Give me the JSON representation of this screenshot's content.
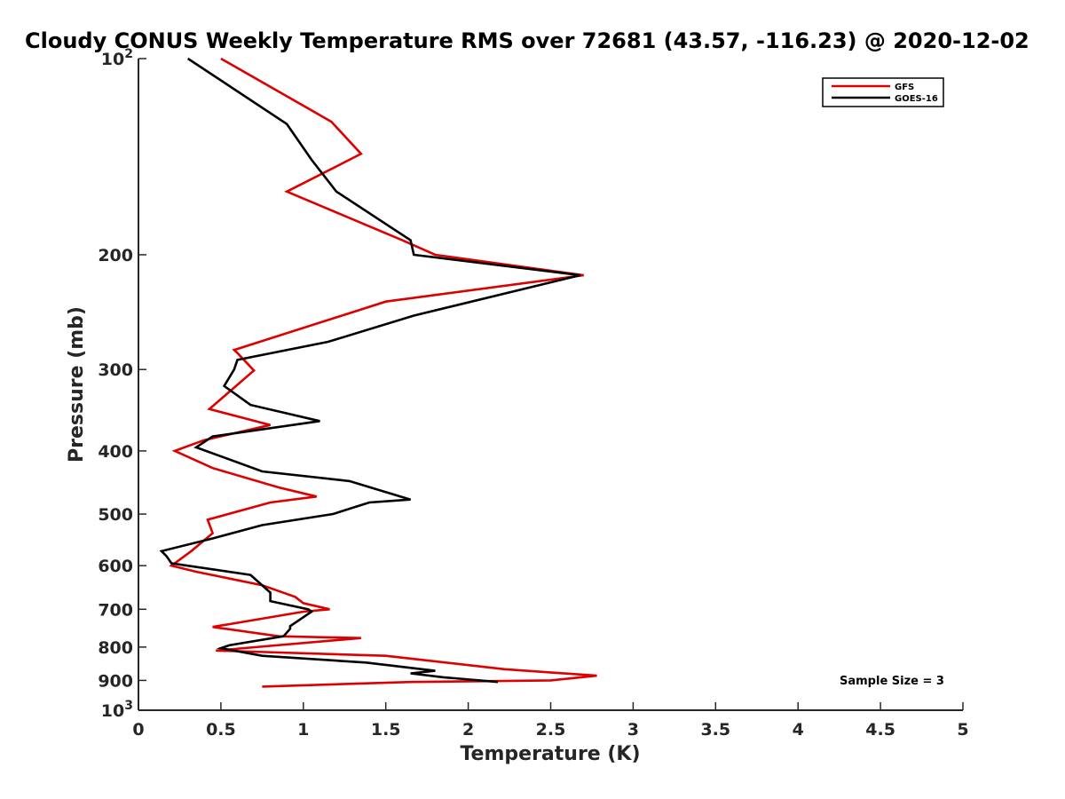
{
  "chart_data": {
    "type": "line",
    "title": "Cloudy CONUS Weekly Temperature RMS over 72681 (43.57, -116.23) @ 2020-12-02",
    "xlabel": "Temperature (K)",
    "ylabel": "Pressure (mb)",
    "xlim": [
      0,
      5
    ],
    "ylim": [
      100,
      1000
    ],
    "y_scale": "log",
    "y_reversed": true,
    "x_ticks": [
      "0",
      "0.5",
      "1",
      "1.5",
      "2",
      "2.5",
      "3",
      "3.5",
      "4",
      "4.5",
      "5"
    ],
    "y_ticks": [
      {
        "value": 100,
        "base": "10",
        "exp": "2"
      },
      {
        "value": 200,
        "label": "200"
      },
      {
        "value": 300,
        "label": "300"
      },
      {
        "value": 400,
        "label": "400"
      },
      {
        "value": 500,
        "label": "500"
      },
      {
        "value": 600,
        "label": "600"
      },
      {
        "value": 700,
        "label": "700"
      },
      {
        "value": 800,
        "label": "800"
      },
      {
        "value": 900,
        "label": "900"
      },
      {
        "value": 1000,
        "base": "10",
        "exp": "3"
      }
    ],
    "grid": false,
    "legend_position": "top-right",
    "annotation": "Sample Size = 3",
    "series": [
      {
        "name": "GFS",
        "color": "#dd0000",
        "points": [
          [
            0.5,
            100
          ],
          [
            1.17,
            125
          ],
          [
            1.35,
            140
          ],
          [
            0.9,
            160
          ],
          [
            1.6,
            190
          ],
          [
            1.8,
            200
          ],
          [
            2.7,
            215
          ],
          [
            1.5,
            236
          ],
          [
            0.58,
            280
          ],
          [
            0.6,
            283
          ],
          [
            0.7,
            301
          ],
          [
            0.43,
            345
          ],
          [
            0.8,
            365
          ],
          [
            0.4,
            385
          ],
          [
            0.22,
            400
          ],
          [
            0.45,
            425
          ],
          [
            0.85,
            455
          ],
          [
            1.08,
            470
          ],
          [
            0.8,
            480
          ],
          [
            0.42,
            510
          ],
          [
            0.45,
            535
          ],
          [
            0.32,
            570
          ],
          [
            0.2,
            600
          ],
          [
            0.35,
            613
          ],
          [
            0.75,
            643
          ],
          [
            0.95,
            670
          ],
          [
            1.0,
            685
          ],
          [
            1.16,
            700
          ],
          [
            1.0,
            706
          ],
          [
            0.45,
            745
          ],
          [
            0.85,
            770
          ],
          [
            1.35,
            775
          ],
          [
            0.47,
            810
          ],
          [
            1.5,
            825
          ],
          [
            2.22,
            865
          ],
          [
            2.78,
            885
          ],
          [
            2.5,
            900
          ],
          [
            1.65,
            905
          ],
          [
            0.75,
            920
          ]
        ]
      },
      {
        "name": "GOES-16",
        "color": "#000000",
        "points": [
          [
            0.3,
            100
          ],
          [
            0.9,
            126
          ],
          [
            1.05,
            143
          ],
          [
            1.2,
            160
          ],
          [
            1.65,
            190
          ],
          [
            1.67,
            200
          ],
          [
            2.68,
            215
          ],
          [
            1.67,
            248
          ],
          [
            1.15,
            272
          ],
          [
            0.6,
            290
          ],
          [
            0.58,
            300
          ],
          [
            0.52,
            318
          ],
          [
            0.68,
            340
          ],
          [
            1.1,
            360
          ],
          [
            0.45,
            380
          ],
          [
            0.35,
            395
          ],
          [
            0.75,
            430
          ],
          [
            1.28,
            445
          ],
          [
            1.65,
            475
          ],
          [
            1.4,
            480
          ],
          [
            1.18,
            500
          ],
          [
            0.75,
            520
          ],
          [
            0.45,
            545
          ],
          [
            0.14,
            570
          ],
          [
            0.17,
            580
          ],
          [
            0.2,
            595
          ],
          [
            0.68,
            620
          ],
          [
            0.8,
            660
          ],
          [
            0.8,
            680
          ],
          [
            1.03,
            700
          ],
          [
            1.05,
            706
          ],
          [
            0.92,
            743
          ],
          [
            0.92,
            750
          ],
          [
            0.88,
            770
          ],
          [
            0.55,
            795
          ],
          [
            0.5,
            803
          ],
          [
            0.75,
            825
          ],
          [
            1.38,
            845
          ],
          [
            1.8,
            870
          ],
          [
            1.65,
            878
          ],
          [
            1.85,
            890
          ],
          [
            2.18,
            905
          ]
        ]
      }
    ]
  }
}
